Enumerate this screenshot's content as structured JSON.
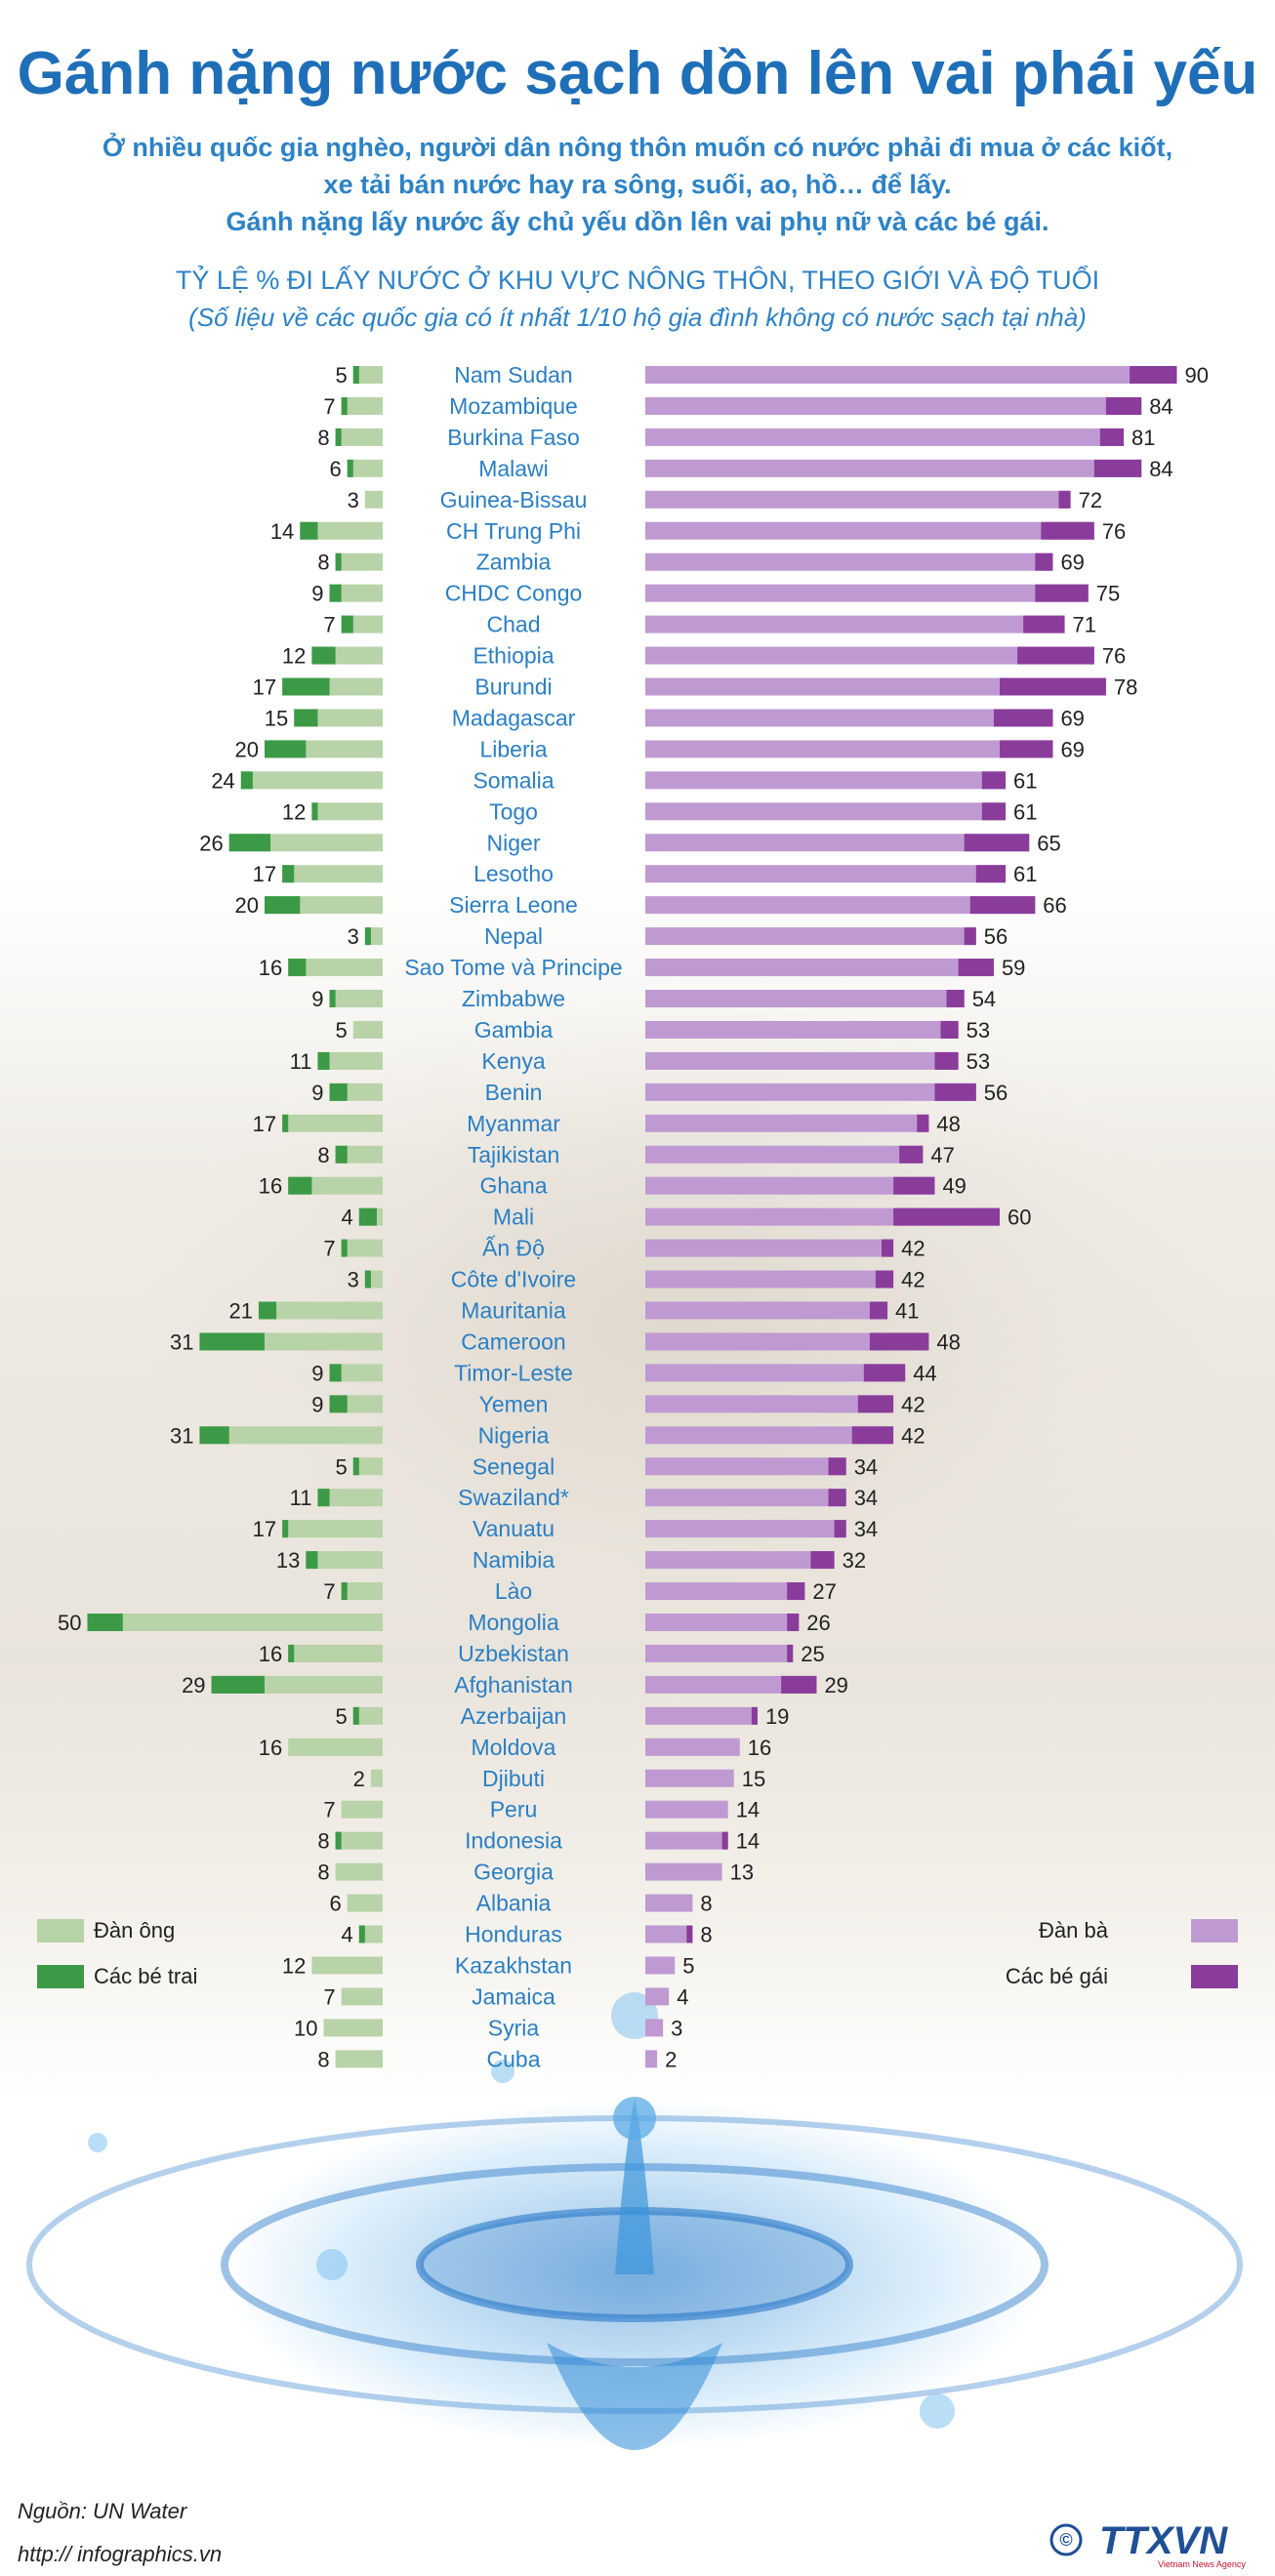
{
  "header": {
    "title": "Gánh nặng nước sạch dồn lên vai phái yếu",
    "intro_lines": [
      "Ở nhiều quốc gia nghèo, người dân nông thôn muốn có nước phải đi mua ở các kiốt,",
      "xe tải bán nước hay ra sông, suối, ao, hồ… để lấy.",
      "Gánh nặng lấy nước ấy chủ yếu dồn lên vai phụ nữ và các bé gái."
    ],
    "subtitle": "TỶ LỆ % ĐI LẤY NƯỚC Ở KHU VỰC NÔNG THÔN, THEO GIỚI VÀ ĐỘ TUỔI",
    "note": "(Số liệu về các quốc gia có ít nhất 1/10 hộ gia đình không có nước sạch tại nhà)"
  },
  "legend": {
    "men": "Đàn ông",
    "boys": "Các bé trai",
    "women": "Đàn bà",
    "girls": "Các bé gái"
  },
  "colors": {
    "men": "#b9d3a8",
    "boys": "#3c9a46",
    "women": "#bf9ad2",
    "girls": "#8a3c9b",
    "country": "#2a7fc4",
    "title": "#1f6fb8"
  },
  "footer": {
    "source": "Nguồn: UN Water",
    "url": "http:// infographics.vn",
    "logo": "TTXVN",
    "logo_sub": "Vietnam News Agency",
    "copyright": "©"
  },
  "chart_data": {
    "type": "bar",
    "orientation": "horizontal-butterfly",
    "categories": [
      "Nam Sudan",
      "Mozambique",
      "Burkina Faso",
      "Malawi",
      "Guinea-Bissau",
      "CH Trung Phi",
      "Zambia",
      "CHDC Congo",
      "Chad",
      "Ethiopia",
      "Burundi",
      "Madagascar",
      "Liberia",
      "Somalia",
      "Togo",
      "Niger",
      "Lesotho",
      "Sierra Leone",
      "Nepal",
      "Sao Tome và Principe",
      "Zimbabwe",
      "Gambia",
      "Kenya",
      "Benin",
      "Myanmar",
      "Tajikistan",
      "Ghana",
      "Mali",
      "Ấn Độ",
      "Côte d'Ivoire",
      "Mauritania",
      "Cameroon",
      "Timor-Leste",
      "Yemen",
      "Nigeria",
      "Senegal",
      "Swaziland*",
      "Vanuatu",
      "Namibia",
      "Lào",
      "Mongolia",
      "Uzbekistan",
      "Afghanistan",
      "Azerbaijan",
      "Moldova",
      "Djibuti",
      "Peru",
      "Indonesia",
      "Georgia",
      "Albania",
      "Honduras",
      "Kazakhstan",
      "Jamaica",
      "Syria",
      "Cuba"
    ],
    "series": [
      {
        "name": "Đàn ông + Các bé trai",
        "side": "left",
        "values": [
          5,
          7,
          8,
          6,
          3,
          14,
          8,
          9,
          7,
          12,
          17,
          15,
          20,
          24,
          12,
          26,
          17,
          20,
          3,
          16,
          9,
          5,
          11,
          9,
          17,
          8,
          16,
          4,
          7,
          3,
          21,
          31,
          9,
          9,
          31,
          5,
          11,
          17,
          13,
          7,
          50,
          16,
          29,
          5,
          16,
          2,
          7,
          8,
          8,
          6,
          4,
          12,
          7,
          10,
          8
        ]
      },
      {
        "name": "Các bé trai",
        "side": "left",
        "values": [
          1,
          1,
          1,
          1,
          0,
          3,
          1,
          2,
          2,
          4,
          8,
          4,
          7,
          2,
          1,
          7,
          2,
          6,
          1,
          3,
          1,
          0,
          2,
          3,
          1,
          2,
          4,
          3,
          1,
          1,
          3,
          11,
          2,
          3,
          5,
          1,
          2,
          1,
          2,
          1,
          6,
          1,
          9,
          1,
          0,
          0,
          0,
          1,
          0,
          0,
          1,
          0,
          0,
          0,
          0
        ]
      },
      {
        "name": "Đàn bà + Các bé gái",
        "side": "right",
        "values": [
          90,
          84,
          81,
          84,
          72,
          76,
          69,
          75,
          71,
          76,
          78,
          69,
          69,
          61,
          61,
          65,
          61,
          66,
          56,
          59,
          54,
          53,
          53,
          56,
          48,
          47,
          49,
          60,
          42,
          42,
          41,
          48,
          44,
          42,
          42,
          34,
          34,
          34,
          32,
          27,
          26,
          25,
          29,
          19,
          16,
          15,
          14,
          14,
          13,
          8,
          8,
          5,
          4,
          3,
          2
        ]
      },
      {
        "name": "Các bé gái",
        "side": "right",
        "values": [
          8,
          6,
          4,
          8,
          2,
          9,
          3,
          9,
          7,
          13,
          18,
          10,
          9,
          4,
          4,
          11,
          5,
          11,
          2,
          6,
          3,
          3,
          4,
          7,
          2,
          4,
          7,
          18,
          2,
          3,
          3,
          10,
          7,
          6,
          7,
          3,
          3,
          2,
          4,
          3,
          2,
          1,
          6,
          1,
          0,
          0,
          0,
          1,
          0,
          0,
          1,
          0,
          0,
          0,
          0
        ]
      }
    ],
    "xlabel": "",
    "ylabel": ""
  }
}
